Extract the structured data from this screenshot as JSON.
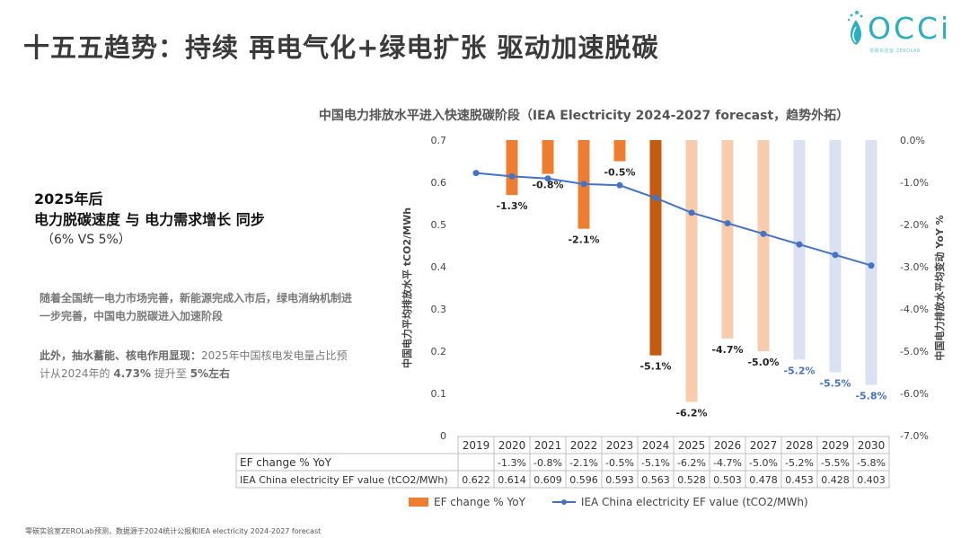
{
  "slide": {
    "title": "十五五趋势：持续 再电气化+绿电扩张 驱动加速脱碳",
    "logo_text": "OCCi",
    "logo_tagline": "零碳实验室 ZEROLAB",
    "headline_1": "2025年后",
    "headline_2": "电力脱碳速度 与 电力需求增长 同步",
    "subnote": "（6% VS 5%）",
    "para1": "随着全国统一电力市场完善，新能源完成入市后，绿电消纳机制进一步完善，中国电力脱碳进入加速阶段",
    "para2_bold": "此外，抽水蓄能、核电作用显现：",
    "para2_text1": "2025年中国核电发电量占比预计从2024年的 ",
    "para2_val1": "4.73%",
    "para2_text2": " 提升至 ",
    "para2_val2": "5%左右",
    "footer": "零碳实验室ZEROLab预测，数据源于2024统计公报和IEA electricity 2024-2027 forecast"
  },
  "colors": {
    "bar_actual": "#ED7D31",
    "bar_2024": "#C55A11",
    "bar_forecast_orange": "#F8CBAD",
    "bar_forecast_blue": "#D9E1F2",
    "line": "#4472C4",
    "blue_label": "#4472C4"
  },
  "chart_data": {
    "type": "bar+line",
    "title": "中国电力排放水平进入快速脱碳阶段（IEA Electricity 2024-2027 forecast，趋势外拓）",
    "ylabel_left": "中国电力平均排放水平 tCO2/MWh",
    "ylabel_right": "中国电力排放水平均变动 YoY %",
    "ylim_left": [
      0,
      0.7
    ],
    "yticks_left": [
      "0",
      "0.1",
      "0.2",
      "0.3",
      "0.4",
      "0.5",
      "0.6",
      "0.7"
    ],
    "ylim_right": [
      -7.0,
      0.0
    ],
    "yticks_right": [
      "0.0%",
      "-1.0%",
      "-2.0%",
      "-3.0%",
      "-4.0%",
      "-5.0%",
      "-6.0%",
      "-7.0%"
    ],
    "categories": [
      "2019",
      "2020",
      "2021",
      "2022",
      "2023",
      "2024",
      "2025",
      "2026",
      "2027",
      "2028",
      "2029",
      "2030"
    ],
    "series": [
      {
        "name": "EF change % YoY",
        "type": "bar",
        "axis": "right",
        "values": [
          null,
          -1.3,
          -0.8,
          -2.1,
          -0.5,
          -5.1,
          -6.2,
          -4.7,
          -5.0,
          -5.2,
          -5.5,
          -5.8
        ],
        "labels": [
          "",
          "-1.3%",
          "-0.8%",
          "-2.1%",
          "-0.5%",
          "-5.1%",
          "-6.2%",
          "-4.7%",
          "-5.0%",
          "-5.2%",
          "-5.5%",
          "-5.8%"
        ],
        "bar_styles": [
          "",
          "actual",
          "actual",
          "actual",
          "actual",
          "dark",
          "light",
          "light",
          "light",
          "blue",
          "blue",
          "blue"
        ]
      },
      {
        "name": "IEA China electricity EF value (tCO2/MWh)",
        "type": "line",
        "axis": "left",
        "values": [
          0.622,
          0.614,
          0.609,
          0.596,
          0.593,
          0.563,
          0.528,
          0.503,
          0.478,
          0.453,
          0.428,
          0.403
        ]
      }
    ],
    "table": {
      "rows": [
        {
          "label": "EF change % YoY",
          "cells": [
            "",
            "-1.3%",
            "-0.8%",
            "-2.1%",
            "-0.5%",
            "-5.1%",
            "-6.2%",
            "-4.7%",
            "-5.0%",
            "-5.2%",
            "-5.5%",
            "-5.8%"
          ]
        },
        {
          "label": "IEA China electricity EF value (tCO2/MWh)",
          "cells": [
            "0.622",
            "0.614",
            "0.609",
            "0.596",
            "0.593",
            "0.563",
            "0.528",
            "0.503",
            "0.478",
            "0.453",
            "0.428",
            "0.403"
          ]
        }
      ]
    },
    "legend": [
      "EF change % YoY",
      "IEA China electricity EF value (tCO2/MWh)"
    ],
    "legend_position": "bottom",
    "grid": false
  }
}
